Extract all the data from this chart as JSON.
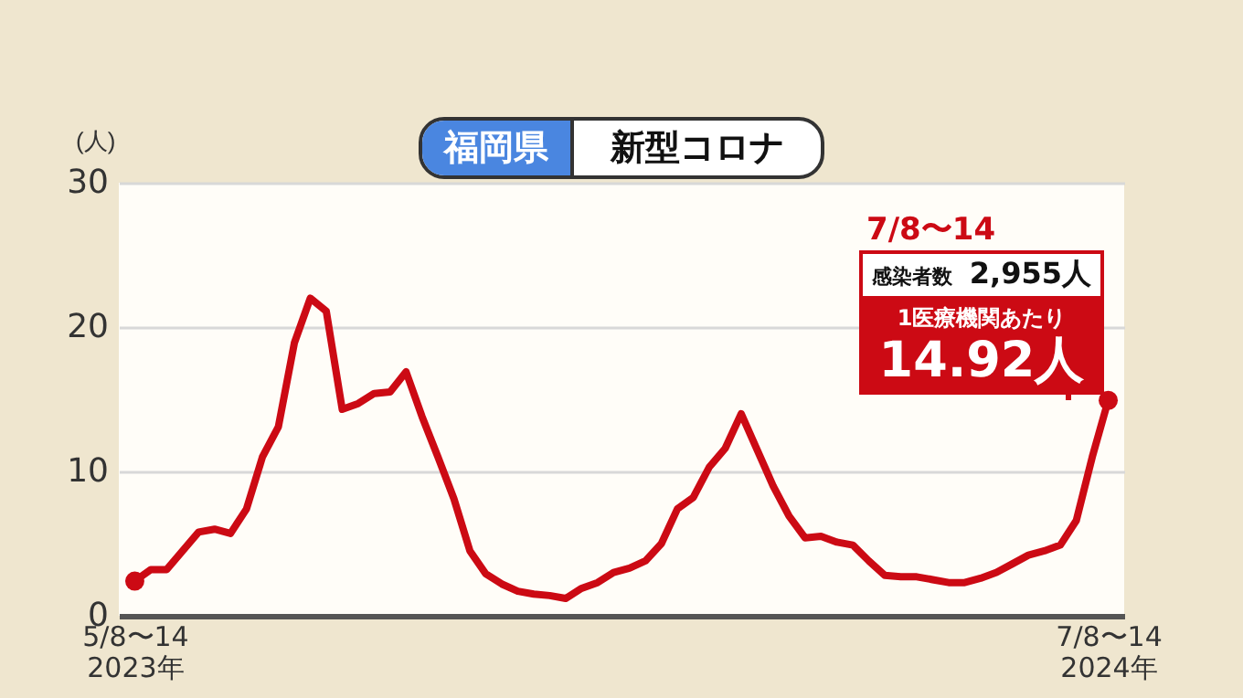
{
  "chart_data": {
    "type": "line",
    "title": "福岡県",
    "subtitle": "新型コロナ",
    "ylabel": "(人)",
    "categories": [
      "5/8〜14\n2023年",
      null,
      null,
      null,
      null,
      null,
      null,
      null,
      null,
      null,
      null,
      null,
      null,
      null,
      null,
      null,
      null,
      null,
      null,
      null,
      null,
      null,
      null,
      null,
      null,
      null,
      null,
      null,
      null,
      null,
      null,
      null,
      null,
      null,
      null,
      null,
      null,
      null,
      null,
      null,
      null,
      null,
      null,
      null,
      null,
      null,
      null,
      null,
      null,
      null,
      null,
      null,
      null,
      null,
      null,
      null,
      null,
      null,
      null,
      null,
      null,
      "7/8〜14\n2024年"
    ],
    "series": [
      {
        "color": "#cc0a14",
        "values": [
          2.4,
          3.2,
          3.2,
          4.5,
          5.8,
          6.0,
          5.7,
          7.4,
          11.0,
          13.1,
          18.9,
          22.0,
          21.1,
          14.3,
          14.7,
          15.4,
          15.5,
          16.9,
          13.8,
          11.0,
          8.1,
          4.5,
          2.9,
          2.2,
          1.7,
          1.5,
          1.4,
          1.2,
          1.9,
          2.3,
          3.0,
          3.3,
          3.8,
          5.0,
          7.4,
          8.2,
          10.3,
          11.6,
          14.0,
          11.5,
          9.0,
          6.9,
          5.4,
          5.5,
          5.1,
          4.9,
          3.8,
          2.8,
          2.7,
          2.7,
          2.5,
          2.3,
          2.3,
          2.6,
          3.0,
          3.6,
          4.2,
          4.5,
          4.9,
          6.6,
          11.0,
          14.92
        ]
      }
    ],
    "ylim": [
      0,
      30
    ],
    "yticks": [
      0,
      10,
      20,
      30
    ],
    "grid": "y",
    "marker": "none",
    "line_style": "solid",
    "annotations": [
      "7/8〜14",
      "感染者数",
      "2,955人",
      "1医療機関あたり",
      "14.92人"
    ]
  }
}
